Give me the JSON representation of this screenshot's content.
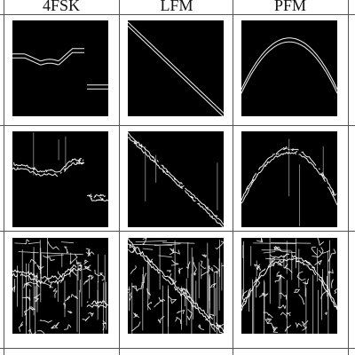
{
  "columns": [
    {
      "label": "4FSK",
      "shape": "fsk"
    },
    {
      "label": "LFM",
      "shape": "lfm"
    },
    {
      "label": "PFM",
      "shape": "pfm"
    }
  ],
  "rows": [
    {
      "noise": "clean"
    },
    {
      "noise": "light"
    },
    {
      "noise": "heavy"
    }
  ],
  "colors": {
    "panel_background": "#000000",
    "curve": "#ffffff",
    "grid_lines": "#555555",
    "page_background": "#ffffff"
  }
}
